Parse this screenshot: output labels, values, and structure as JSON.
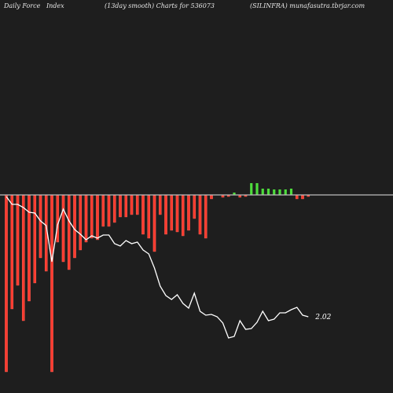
{
  "header": {
    "left": "Daily Force   Index",
    "center": "(13day smooth) Charts for 536073",
    "right": "(SILINFRA) munafasutra.tbrjar.com"
  },
  "colors": {
    "background": "#1e1e1e",
    "negative_bar": "#ff3b2f",
    "positive_bar": "#4ddc3c",
    "zero_line": "#bdbdbd",
    "smooth_line": "#ffffff",
    "header_text": "#e6e6e6"
  },
  "chart_data": {
    "type": "bar",
    "zero_line": true,
    "grid": false,
    "bar_values": [
      -225,
      -145,
      -115,
      -160,
      -135,
      -112,
      -80,
      -97,
      -225,
      -60,
      -85,
      -95,
      -80,
      -70,
      -60,
      -55,
      -57,
      -40,
      -40,
      -35,
      -28,
      -28,
      -25,
      -25,
      -50,
      -55,
      -72,
      -25,
      -50,
      -45,
      -47,
      -52,
      -45,
      -30,
      -50,
      -55,
      -5,
      0,
      -3,
      -2,
      3,
      -3,
      -2,
      15,
      15,
      8,
      8,
      7,
      7,
      7,
      8,
      -5,
      -5,
      -2
    ],
    "line_values": [
      -2,
      -12,
      -12,
      -16,
      -22,
      -23,
      -33,
      -39,
      -85,
      -38,
      -18,
      -33,
      -44,
      -50,
      -57,
      -52,
      -55,
      -51,
      -51,
      -62,
      -65,
      -58,
      -62,
      -60,
      -70,
      -75,
      -93,
      -116,
      -128,
      -133,
      -127,
      -138,
      -144,
      -125,
      -148,
      -153,
      -152,
      -155,
      -163,
      -182,
      -180,
      -160,
      -171,
      -170,
      -162,
      -148,
      -160,
      -158,
      -150,
      -150,
      -146,
      -143,
      -153,
      -155
    ],
    "last_value_label": "2.02"
  }
}
